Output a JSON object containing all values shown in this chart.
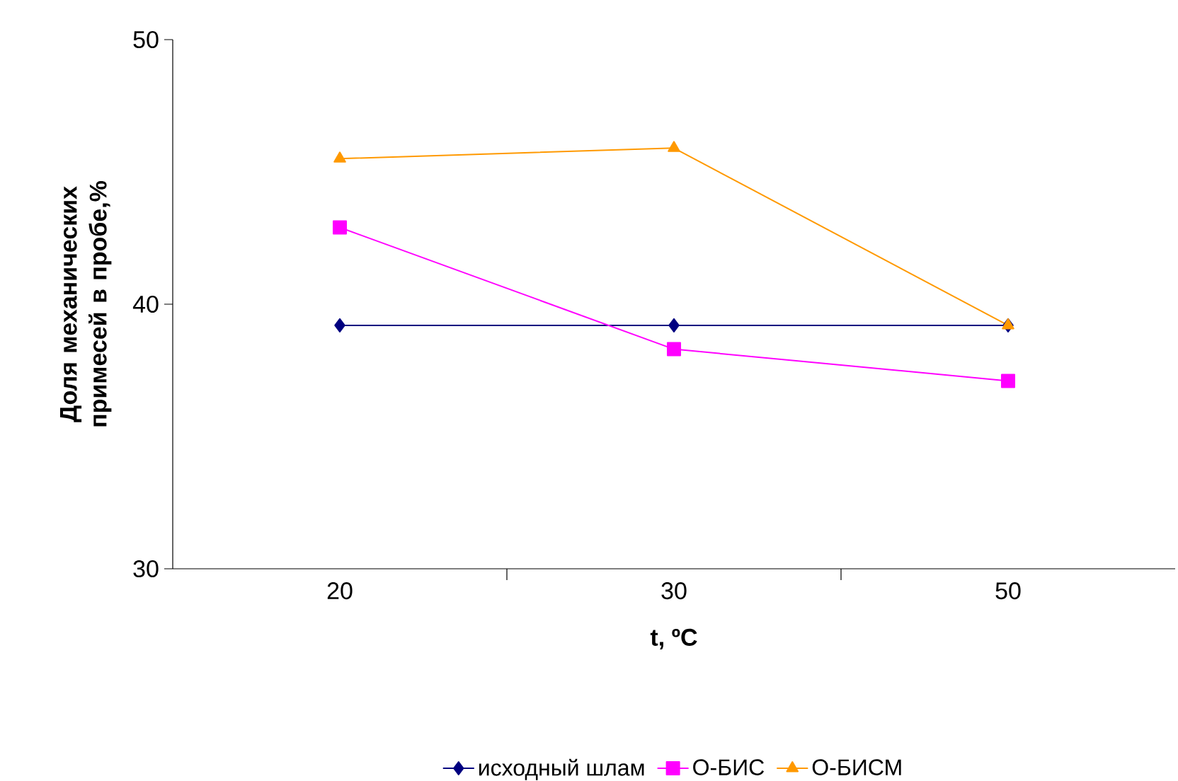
{
  "chart_data": {
    "type": "line",
    "xlabel": "t, ºC",
    "ylabel": "Доля механических примесей в пробе,%",
    "categories": [
      "20",
      "30",
      "50"
    ],
    "series": [
      {
        "name": "исходный шлам",
        "color": "#000080",
        "marker": "diamond",
        "values": [
          39.2,
          39.2,
          39.2
        ]
      },
      {
        "name": "О-БИС",
        "color": "#ff00ff",
        "marker": "square",
        "values": [
          42.9,
          38.3,
          37.1
        ]
      },
      {
        "name": "О-БИСМ",
        "color": "#ff9900",
        "marker": "triangle",
        "values": [
          45.5,
          45.9,
          39.2
        ]
      }
    ],
    "ylim": [
      30,
      50
    ],
    "yticks": [
      30,
      40,
      50
    ],
    "grid": false,
    "legend": "bottom",
    "line_style": "solid"
  }
}
